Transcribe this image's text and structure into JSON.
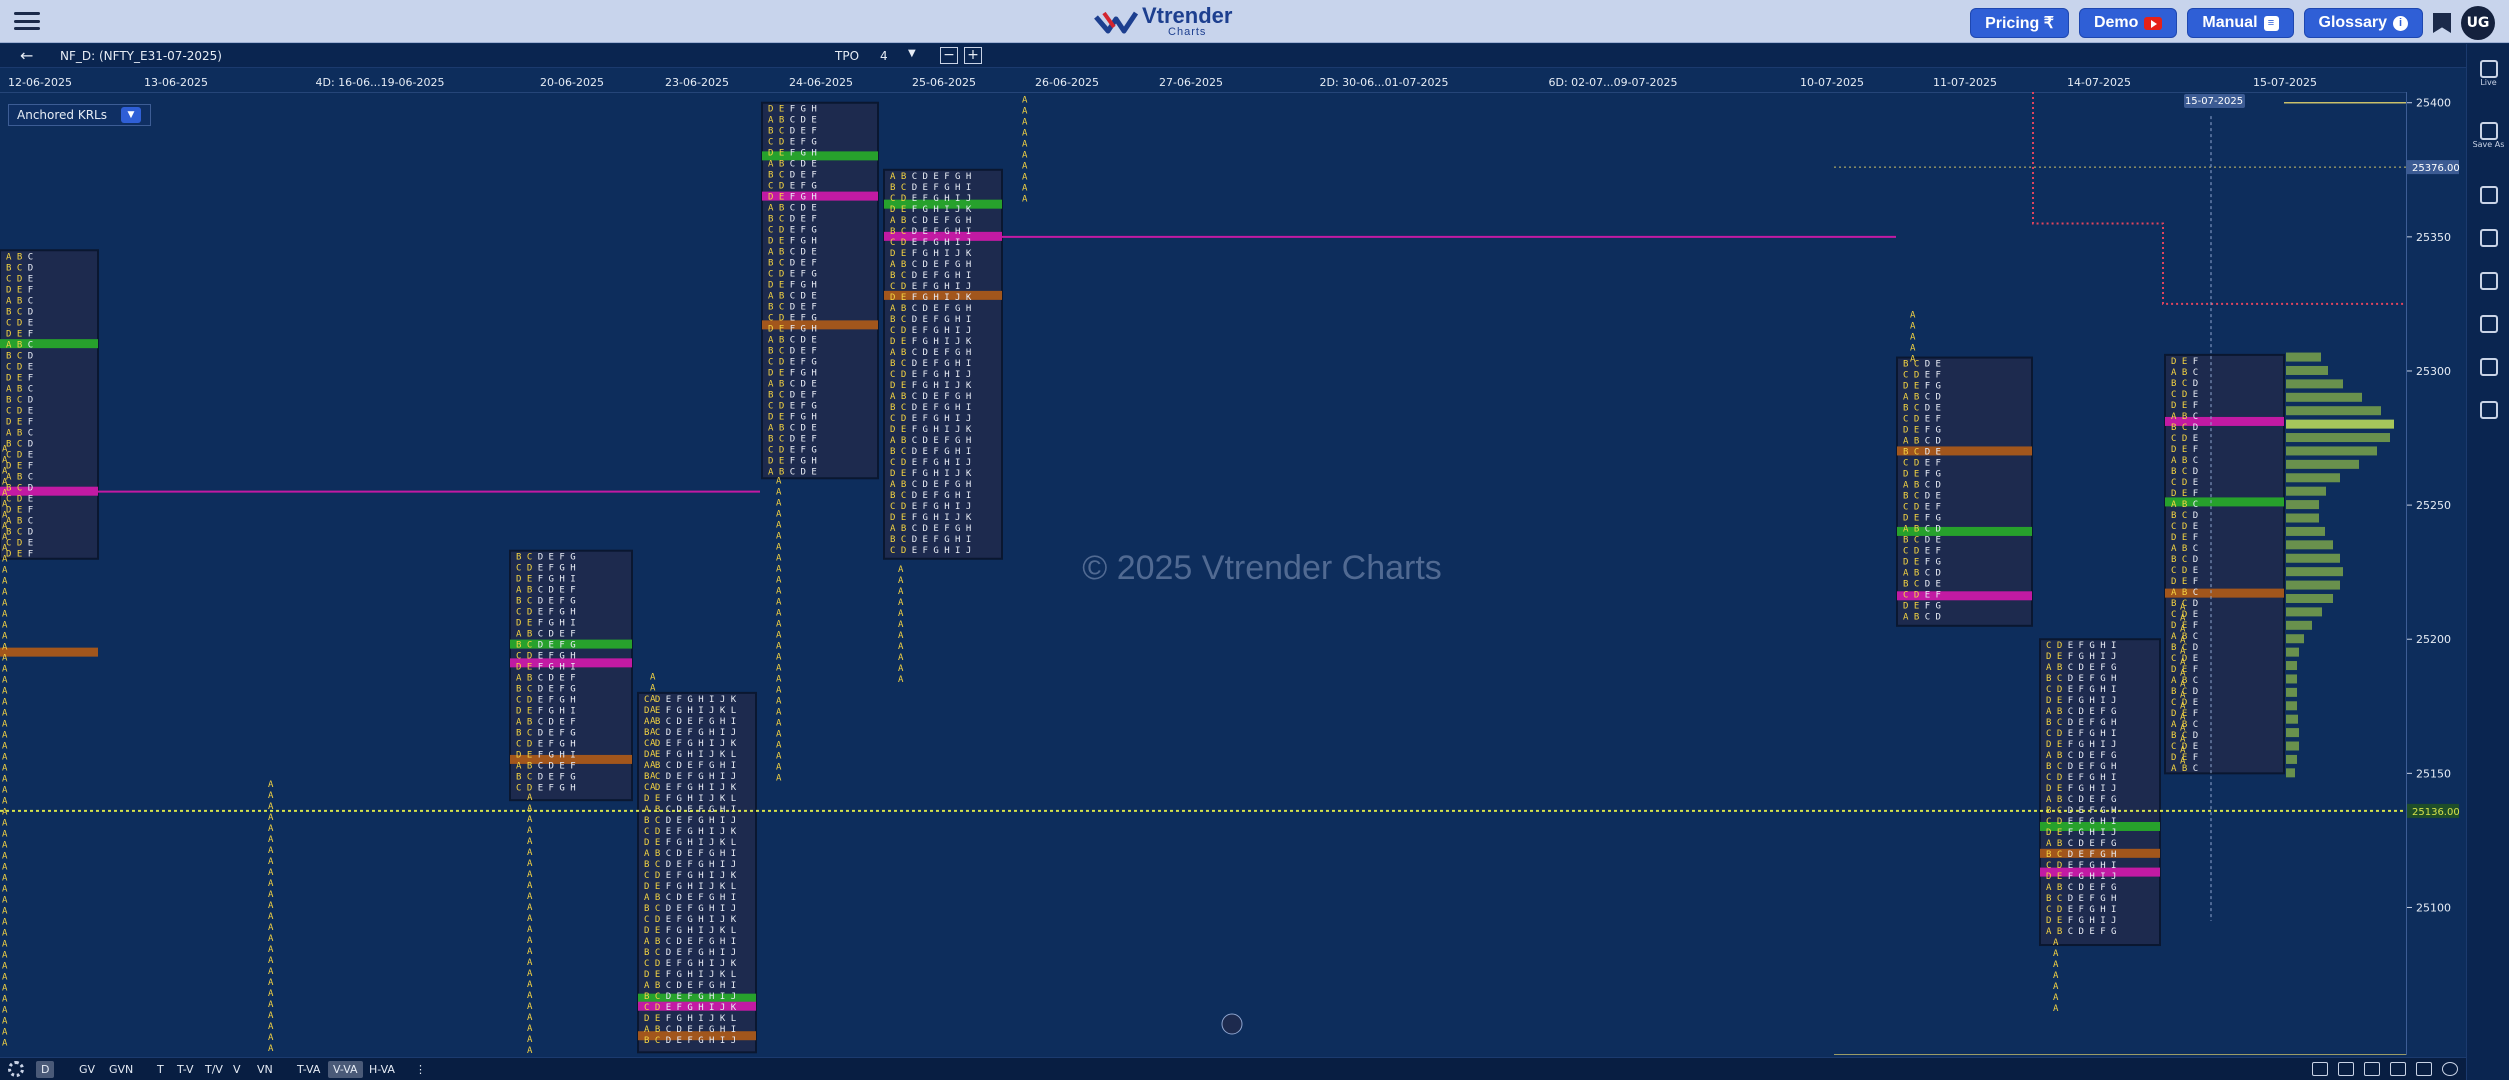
{
  "header": {
    "logo_name": "Vtrender",
    "logo_sub": "Charts",
    "buttons": [
      {
        "label": "Pricing ₹",
        "icon": "rupee-icon"
      },
      {
        "label": "Demo",
        "icon": "youtube-icon"
      },
      {
        "label": "Manual",
        "icon": "book-icon"
      },
      {
        "label": "Glossary",
        "icon": "info-icon"
      }
    ],
    "avatar": "UG"
  },
  "toolbar": {
    "symbol": "NF_D: (NFTY_E31-07-2025)",
    "tpo_label": "TPO",
    "tpo_value": "4",
    "anchored_label": "Anchored KRLs"
  },
  "colors": {
    "background": "#0d2d5c",
    "profile_box": "#1d2a4e",
    "poc": "#c21aa3",
    "value_high": "#27a12c",
    "value_low": "#a2561c",
    "tpo_yellow": "#f5d442",
    "tpo_white": "#e8ecf5",
    "dotted_level": "#d7e24a",
    "red_level": "#e0445d",
    "volume_bar": "#7aa34a",
    "volume_poc": "#c2e25a"
  },
  "chart_data": {
    "type": "table",
    "title": "",
    "watermark": "© 2025 Vtrender Charts",
    "y_ticks": [
      25400,
      25350,
      25300,
      25250,
      25200,
      25150,
      25100
    ],
    "ylim": [
      25045,
      25404
    ],
    "highlighted_prices": [
      "25376.00",
      "25136.00"
    ],
    "cursor_date": "15-07-2025",
    "date_labels": [
      "12-06-2025",
      "13-06-2025",
      "4D: 16-06...19-06-2025",
      "20-06-2025",
      "23-06-2025",
      "24-06-2025",
      "25-06-2025",
      "26-06-2025",
      "27-06-2025",
      "2D: 30-06...01-07-2025",
      "6D: 02-07...09-07-2025",
      "10-07-2025",
      "11-07-2025",
      "14-07-2025",
      "15-07-2025"
    ],
    "profiles": [
      {
        "date": "12-06-2025",
        "top": 25345,
        "bottom": 25230,
        "poc": 25255,
        "vah": 25310,
        "val": 25195
      },
      {
        "date": "20-06-2025",
        "top": 25233,
        "bottom": 25140,
        "poc": 25191,
        "vah": 25198,
        "val": 25155
      },
      {
        "date": "23-06-2025",
        "top": 25180,
        "bottom": 25046,
        "poc": 25063,
        "vah": 25066,
        "val": 25052
      },
      {
        "date": "24-06-2025",
        "top": 25400,
        "bottom": 25260,
        "poc": 25365,
        "vah": 25380,
        "val": 25317
      },
      {
        "date": "25-06-2025",
        "top": 25375,
        "bottom": 25230,
        "poc": 25350,
        "vah": 25362,
        "val": 25328
      },
      {
        "date": "11-07-2025",
        "top": 25305,
        "bottom": 25205,
        "poc": 25216,
        "vah": 25240,
        "val": 25270
      },
      {
        "date": "14-07-2025",
        "top": 25200,
        "bottom": 25086,
        "poc": 25113,
        "vah": 25130,
        "val": 25120
      },
      {
        "date": "15-07-2025",
        "top": 25306,
        "bottom": 25150,
        "poc": 25281,
        "vah": 25251,
        "val": 25217
      }
    ]
  },
  "bottom_bar": {
    "buttons": [
      "D",
      "GV",
      "GVN",
      "T",
      "T-V",
      "T/V",
      "V",
      "VN",
      "T-VA",
      "V-VA",
      "H-VA"
    ],
    "selected": [
      "D",
      "V-VA"
    ]
  },
  "sidebar": {
    "items": [
      {
        "label": "Live",
        "icon": "live-icon"
      },
      {
        "label": "Save As",
        "icon": "save-icon"
      },
      {
        "label": "",
        "icon": "layout-single-icon"
      },
      {
        "label": "",
        "icon": "layout-split-icon"
      },
      {
        "label": "",
        "icon": "layout-rows-icon"
      },
      {
        "label": "",
        "icon": "layout-grid-icon"
      },
      {
        "label": "",
        "icon": "layout-columns-icon"
      },
      {
        "label": "",
        "icon": "layout-multi-icon"
      }
    ]
  }
}
